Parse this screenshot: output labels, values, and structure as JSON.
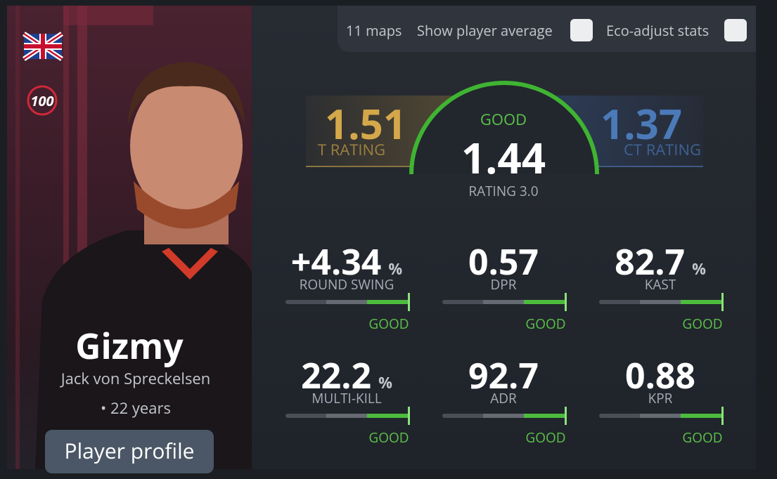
{
  "controls": {
    "maps": "11 maps",
    "player_average": "Show player average",
    "eco_adjust": "Eco-adjust stats"
  },
  "player": {
    "nickname": "Gizmy",
    "name": "Jack von Spreckelsen",
    "age": "• 22 years",
    "button": "Player profile"
  },
  "ratings": {
    "t": {
      "value": "1.51",
      "label": "T RATING"
    },
    "overall": {
      "verdict": "GOOD",
      "value": "1.44",
      "label": "RATING 3.0"
    },
    "ct": {
      "value": "1.37",
      "label": "CT RATING"
    }
  },
  "stats": [
    {
      "value": "+4.34",
      "unit": "%",
      "label": "ROUND SWING",
      "verdict": "GOOD"
    },
    {
      "value": "0.57",
      "label": "DPR",
      "verdict": "GOOD"
    },
    {
      "value": "82.7",
      "unit": "%",
      "label": "KAST",
      "verdict": "GOOD"
    },
    {
      "value": "22.2",
      "unit": "%",
      "label": "MULTI-KILL",
      "verdict": "GOOD"
    },
    {
      "value": "92.7",
      "label": "ADR",
      "verdict": "GOOD"
    },
    {
      "value": "0.88",
      "label": "KPR",
      "verdict": "GOOD"
    }
  ]
}
